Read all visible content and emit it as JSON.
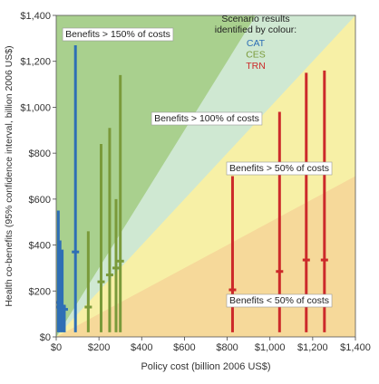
{
  "chart_data": {
    "type": "scatter",
    "title": "",
    "xlabel": "Policy cost (billion 2006 US$)",
    "ylabel": "Health co-benefits (95% confidence interval, billion 2006 US$)",
    "xlim": [
      0,
      1400
    ],
    "ylim": [
      0,
      1400
    ],
    "x_ticks": [
      0,
      200,
      400,
      600,
      800,
      1000,
      1200,
      1400
    ],
    "x_tick_labels": [
      "$0",
      "$200",
      "$400",
      "$600",
      "$800",
      "$1,000",
      "$1,200",
      "$1,400"
    ],
    "y_ticks": [
      0,
      200,
      400,
      600,
      800,
      1000,
      1200,
      1400
    ],
    "y_tick_labels": [
      "$0",
      "$200",
      "$400",
      "$600",
      "$800",
      "$1,000",
      "$1,200",
      "$1,400"
    ],
    "regions": [
      {
        "label": "Benefits > 150% of costs",
        "ratio_min": 1.5,
        "color": "#a9d08e"
      },
      {
        "label": "Benefits > 100% of costs",
        "ratio_min": 1.0,
        "ratio_max": 1.5,
        "color": "#cfe8d2"
      },
      {
        "label": "Benefits > 50% of costs",
        "ratio_min": 0.5,
        "ratio_max": 1.0,
        "color": "#f7f0a6"
      },
      {
        "label": "Benefits < 50% of costs",
        "ratio_max": 0.5,
        "color": "#f6d99a"
      }
    ],
    "legend": {
      "title_line1": "Scenario results",
      "title_line2": "identified by colour:",
      "position": "top-right"
    },
    "series": [
      {
        "name": "CAT",
        "color": "#2e6fb5",
        "points": [
          {
            "x": 10,
            "y": 150,
            "low": 20,
            "high": 550
          },
          {
            "x": 18,
            "y": 130,
            "low": 20,
            "high": 420
          },
          {
            "x": 28,
            "y": 130,
            "low": 20,
            "high": 380
          },
          {
            "x": 38,
            "y": 120,
            "low": 20,
            "high": 140
          },
          {
            "x": 90,
            "y": 370,
            "low": 20,
            "high": 1270
          }
        ]
      },
      {
        "name": "CES",
        "color": "#7a9a3a",
        "points": [
          {
            "x": 150,
            "y": 130,
            "low": 20,
            "high": 460
          },
          {
            "x": 210,
            "y": 240,
            "low": 20,
            "high": 840
          },
          {
            "x": 250,
            "y": 270,
            "low": 20,
            "high": 910
          },
          {
            "x": 280,
            "y": 300,
            "low": 20,
            "high": 600
          },
          {
            "x": 300,
            "y": 330,
            "low": 20,
            "high": 1140
          }
        ]
      },
      {
        "name": "TRN",
        "color": "#cc2a2a",
        "points": [
          {
            "x": 825,
            "y": 205,
            "low": 20,
            "high": 700
          },
          {
            "x": 1045,
            "y": 285,
            "low": 20,
            "high": 980
          },
          {
            "x": 1170,
            "y": 335,
            "low": 20,
            "high": 1150
          },
          {
            "x": 1255,
            "y": 335,
            "low": 20,
            "high": 1160
          }
        ]
      }
    ],
    "grid": false
  }
}
